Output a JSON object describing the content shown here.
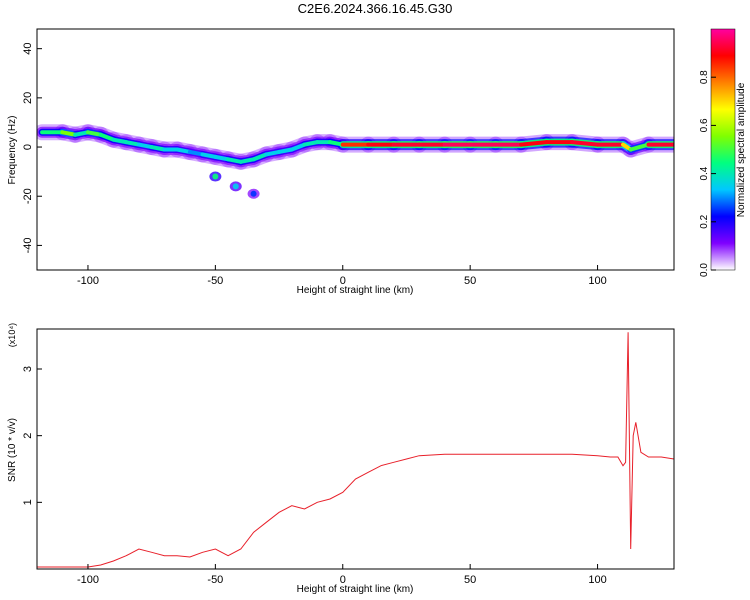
{
  "title": "C2E6.2024.366.16.45.G30",
  "chart_data": [
    {
      "type": "heatmap",
      "xlabel": "Height of straight line (km)",
      "ylabel": "Frequency (Hz)",
      "xlim": [
        -120,
        130
      ],
      "ylim": [
        -50,
        48
      ],
      "xticks": [
        -100,
        -50,
        0,
        50,
        100
      ],
      "yticks": [
        -40,
        -20,
        0,
        20,
        40
      ],
      "colorbar": {
        "label": "Normalized spectral amplitude",
        "range": [
          0.0,
          1.0
        ],
        "ticks": [
          0.0,
          0.2,
          0.4,
          0.6,
          0.8
        ],
        "tick_labels": [
          "0.0",
          "0.2",
          "0.4",
          "0.6",
          "0.8"
        ],
        "colormap": [
          "#ffffff",
          "#7f00ff",
          "#0000ff",
          "#00c8ff",
          "#00ff80",
          "#80ff00",
          "#ffff00",
          "#ff8000",
          "#ff0000",
          "#ff00a0"
        ]
      },
      "ridge": [
        {
          "x": -118,
          "f": 6,
          "a": 0.45
        },
        {
          "x": -110,
          "f": 6,
          "a": 0.55
        },
        {
          "x": -105,
          "f": 5,
          "a": 0.4
        },
        {
          "x": -100,
          "f": 6,
          "a": 0.5
        },
        {
          "x": -95,
          "f": 5,
          "a": 0.45
        },
        {
          "x": -90,
          "f": 3,
          "a": 0.4
        },
        {
          "x": -85,
          "f": 2,
          "a": 0.4
        },
        {
          "x": -80,
          "f": 1,
          "a": 0.35
        },
        {
          "x": -75,
          "f": 0,
          "a": 0.4
        },
        {
          "x": -70,
          "f": -1,
          "a": 0.35
        },
        {
          "x": -65,
          "f": -1,
          "a": 0.35
        },
        {
          "x": -60,
          "f": -2,
          "a": 0.3
        },
        {
          "x": -55,
          "f": -3,
          "a": 0.35
        },
        {
          "x": -50,
          "f": -4,
          "a": 0.35
        },
        {
          "x": -45,
          "f": -5,
          "a": 0.4
        },
        {
          "x": -40,
          "f": -6,
          "a": 0.4
        },
        {
          "x": -35,
          "f": -5,
          "a": 0.4
        },
        {
          "x": -30,
          "f": -3,
          "a": 0.35
        },
        {
          "x": -25,
          "f": -2,
          "a": 0.35
        },
        {
          "x": -20,
          "f": -1,
          "a": 0.35
        },
        {
          "x": -15,
          "f": 1,
          "a": 0.4
        },
        {
          "x": -10,
          "f": 2,
          "a": 0.4
        },
        {
          "x": -5,
          "f": 2,
          "a": 0.45
        },
        {
          "x": 0,
          "f": 1,
          "a": 0.85
        },
        {
          "x": 10,
          "f": 1,
          "a": 0.9
        },
        {
          "x": 20,
          "f": 1,
          "a": 0.92
        },
        {
          "x": 30,
          "f": 1,
          "a": 0.92
        },
        {
          "x": 40,
          "f": 1,
          "a": 0.95
        },
        {
          "x": 50,
          "f": 1,
          "a": 0.95
        },
        {
          "x": 60,
          "f": 1,
          "a": 0.95
        },
        {
          "x": 70,
          "f": 1,
          "a": 0.9
        },
        {
          "x": 80,
          "f": 2,
          "a": 0.9
        },
        {
          "x": 90,
          "f": 2,
          "a": 0.92
        },
        {
          "x": 100,
          "f": 1,
          "a": 0.92
        },
        {
          "x": 110,
          "f": 1,
          "a": 0.7
        },
        {
          "x": 113,
          "f": -1,
          "a": 0.5
        },
        {
          "x": 120,
          "f": 1,
          "a": 0.92
        },
        {
          "x": 130,
          "f": 1,
          "a": 0.92
        }
      ],
      "blobs": [
        {
          "x": -50,
          "f": -12,
          "a": 0.45
        },
        {
          "x": -42,
          "f": -16,
          "a": 0.35
        },
        {
          "x": -35,
          "f": -19,
          "a": 0.25
        }
      ]
    },
    {
      "type": "line",
      "xlabel": "Height of straight line (km)",
      "ylabel": "SNR (10 * v/v)",
      "scale_label": "(x10⁴)",
      "xlim": [
        -120,
        130
      ],
      "ylim": [
        0,
        3.6
      ],
      "xticks": [
        -100,
        -50,
        0,
        50,
        100
      ],
      "yticks": [
        1,
        2,
        3
      ],
      "color": "#e8202a",
      "x": [
        -120,
        -110,
        -100,
        -95,
        -90,
        -85,
        -80,
        -75,
        -70,
        -65,
        -60,
        -55,
        -50,
        -45,
        -40,
        -35,
        -30,
        -25,
        -20,
        -15,
        -10,
        -5,
        0,
        5,
        10,
        15,
        20,
        25,
        30,
        40,
        50,
        60,
        70,
        80,
        90,
        100,
        105,
        108,
        110,
        111,
        112,
        113,
        114,
        115,
        117,
        120,
        125,
        130
      ],
      "y": [
        0.03,
        0.03,
        0.03,
        0.06,
        0.12,
        0.2,
        0.3,
        0.25,
        0.2,
        0.2,
        0.18,
        0.25,
        0.3,
        0.2,
        0.3,
        0.55,
        0.7,
        0.85,
        0.95,
        0.9,
        1.0,
        1.05,
        1.15,
        1.35,
        1.45,
        1.55,
        1.6,
        1.65,
        1.7,
        1.72,
        1.72,
        1.72,
        1.72,
        1.72,
        1.72,
        1.7,
        1.68,
        1.68,
        1.55,
        1.6,
        3.55,
        0.3,
        2.0,
        2.2,
        1.75,
        1.68,
        1.68,
        1.65
      ]
    }
  ]
}
